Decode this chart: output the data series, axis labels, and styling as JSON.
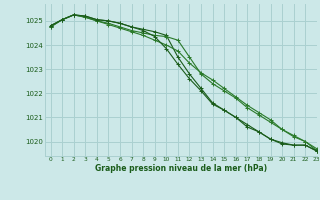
{
  "title": "Graphe pression niveau de la mer (hPa)",
  "background_color": "#cce8e8",
  "grid_color": "#aad0d0",
  "line_color_dark": "#1a5c1a",
  "line_color_mid": "#2a7a2a",
  "xlabel": "Graphe pression niveau de la mer (hPa)",
  "ylim": [
    1019.4,
    1025.7
  ],
  "xlim": [
    -0.5,
    23
  ],
  "yticks": [
    1020,
    1021,
    1022,
    1023,
    1024,
    1025
  ],
  "xticks": [
    0,
    1,
    2,
    3,
    4,
    5,
    6,
    7,
    8,
    9,
    10,
    11,
    12,
    13,
    14,
    15,
    16,
    17,
    18,
    19,
    20,
    21,
    22,
    23
  ],
  "series": [
    [
      1024.8,
      1025.05,
      1025.25,
      1025.2,
      1025.05,
      1025.0,
      1024.9,
      1024.75,
      1024.65,
      1024.55,
      1024.4,
      1023.5,
      1022.8,
      1022.2,
      1021.6,
      1021.3,
      1021.0,
      1020.7,
      1020.4,
      1020.1,
      1019.9,
      1019.85,
      1019.85,
      1019.6
    ],
    [
      1024.75,
      1025.05,
      1025.25,
      1025.15,
      1025.0,
      1024.85,
      1024.7,
      1024.55,
      1024.4,
      1024.2,
      1024.0,
      1023.75,
      1023.25,
      1022.85,
      1022.55,
      1022.2,
      1021.85,
      1021.5,
      1021.2,
      1020.9,
      1020.5,
      1020.25,
      1020.0,
      1019.62
    ],
    [
      1024.75,
      1025.05,
      1025.25,
      1025.15,
      1025.0,
      1024.9,
      1024.75,
      1024.6,
      1024.5,
      1024.4,
      1024.35,
      1024.2,
      1023.5,
      1022.8,
      1022.4,
      1022.1,
      1021.8,
      1021.4,
      1021.1,
      1020.8,
      1020.5,
      1020.2,
      1020.0,
      1019.7
    ],
    [
      1024.8,
      1025.05,
      1025.25,
      1025.2,
      1025.05,
      1025.0,
      1024.9,
      1024.75,
      1024.6,
      1024.35,
      1023.85,
      1023.2,
      1022.6,
      1022.1,
      1021.55,
      1021.3,
      1021.0,
      1020.6,
      1020.4,
      1020.1,
      1019.95,
      1019.85,
      1019.85,
      1019.62
    ]
  ]
}
